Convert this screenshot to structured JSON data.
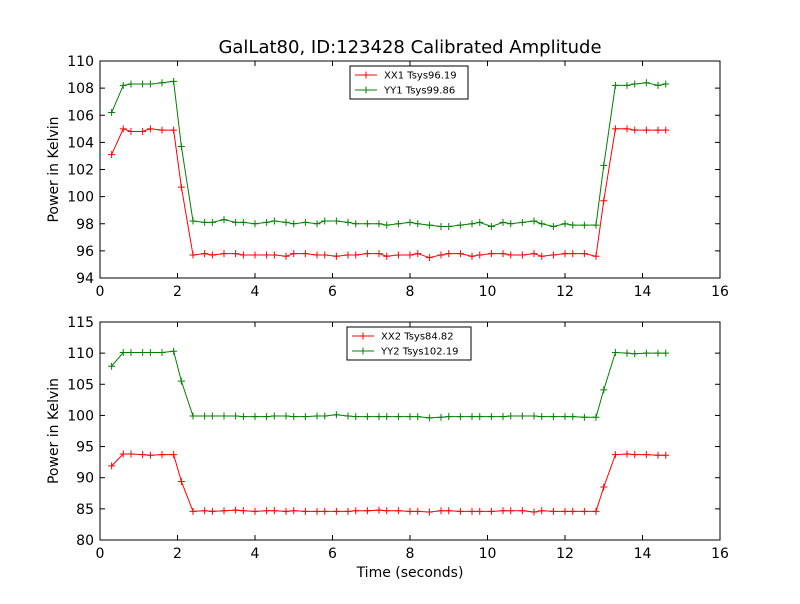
{
  "chart_data": [
    {
      "type": "line",
      "title": "GalLat80, ID:123428 Calibrated Amplitude",
      "xlabel": "",
      "ylabel": "Power in Kelvin",
      "xlim": [
        0,
        16
      ],
      "ylim": [
        94,
        110
      ],
      "xticks": [
        0,
        2,
        4,
        6,
        8,
        10,
        12,
        14,
        16
      ],
      "yticks": [
        94,
        96,
        98,
        100,
        102,
        104,
        106,
        108,
        110
      ],
      "grid": false,
      "legend_position": "top-center",
      "x": [
        0.3,
        0.6,
        0.8,
        1.1,
        1.3,
        1.6,
        1.9,
        2.1,
        2.4,
        2.7,
        2.9,
        3.2,
        3.5,
        3.7,
        4.0,
        4.3,
        4.5,
        4.8,
        5.0,
        5.3,
        5.6,
        5.8,
        6.1,
        6.4,
        6.6,
        6.9,
        7.2,
        7.4,
        7.7,
        8.0,
        8.2,
        8.5,
        8.8,
        9.0,
        9.3,
        9.6,
        9.8,
        10.1,
        10.4,
        10.6,
        10.9,
        11.2,
        11.4,
        11.7,
        12.0,
        12.2,
        12.5,
        12.8,
        13.0,
        13.3,
        13.6,
        13.8,
        14.1,
        14.4,
        14.6
      ],
      "series": [
        {
          "name": "XX1 Tsys96.19",
          "color": "#ff0000",
          "values": [
            103.1,
            105.0,
            104.8,
            104.8,
            105.0,
            104.9,
            104.9,
            100.7,
            95.7,
            95.8,
            95.7,
            95.8,
            95.8,
            95.7,
            95.7,
            95.7,
            95.7,
            95.6,
            95.8,
            95.8,
            95.7,
            95.7,
            95.6,
            95.7,
            95.7,
            95.8,
            95.8,
            95.6,
            95.7,
            95.7,
            95.8,
            95.5,
            95.7,
            95.8,
            95.8,
            95.6,
            95.7,
            95.8,
            95.8,
            95.7,
            95.7,
            95.8,
            95.6,
            95.7,
            95.8,
            95.8,
            95.8,
            95.6,
            99.7,
            105.0,
            105.0,
            104.9,
            104.9,
            104.9,
            104.9
          ]
        },
        {
          "name": "YY1 Tsys99.86",
          "color": "#008000",
          "values": [
            106.2,
            108.2,
            108.3,
            108.3,
            108.3,
            108.4,
            108.5,
            103.7,
            98.2,
            98.1,
            98.1,
            98.3,
            98.1,
            98.1,
            98.0,
            98.1,
            98.2,
            98.1,
            98.0,
            98.1,
            98.0,
            98.2,
            98.2,
            98.1,
            98.0,
            98.0,
            98.0,
            97.9,
            98.0,
            98.1,
            98.0,
            97.9,
            97.8,
            97.8,
            97.9,
            98.0,
            98.1,
            97.8,
            98.1,
            98.0,
            98.1,
            98.2,
            98.0,
            97.8,
            98.0,
            97.9,
            97.9,
            97.9,
            102.3,
            108.2,
            108.2,
            108.3,
            108.4,
            108.2,
            108.3
          ]
        }
      ]
    },
    {
      "type": "line",
      "title": "",
      "xlabel": "Time (seconds)",
      "ylabel": "Power in Kelvin",
      "xlim": [
        0,
        16
      ],
      "ylim": [
        80,
        115
      ],
      "xticks": [
        0,
        2,
        4,
        6,
        8,
        10,
        12,
        14,
        16
      ],
      "yticks": [
        80,
        85,
        90,
        95,
        100,
        105,
        110,
        115
      ],
      "grid": false,
      "legend_position": "top-center",
      "x": [
        0.3,
        0.6,
        0.8,
        1.1,
        1.3,
        1.6,
        1.9,
        2.1,
        2.4,
        2.7,
        2.9,
        3.2,
        3.5,
        3.7,
        4.0,
        4.3,
        4.5,
        4.8,
        5.0,
        5.3,
        5.6,
        5.8,
        6.1,
        6.4,
        6.6,
        6.9,
        7.2,
        7.4,
        7.7,
        8.0,
        8.2,
        8.5,
        8.8,
        9.0,
        9.3,
        9.6,
        9.8,
        10.1,
        10.4,
        10.6,
        10.9,
        11.2,
        11.4,
        11.7,
        12.0,
        12.2,
        12.5,
        12.8,
        13.0,
        13.3,
        13.6,
        13.8,
        14.1,
        14.4,
        14.6
      ],
      "series": [
        {
          "name": "XX2 Tsys84.82",
          "color": "#ff0000",
          "values": [
            91.9,
            93.8,
            93.8,
            93.7,
            93.6,
            93.7,
            93.7,
            89.4,
            84.6,
            84.7,
            84.6,
            84.7,
            84.8,
            84.7,
            84.6,
            84.7,
            84.7,
            84.6,
            84.7,
            84.6,
            84.6,
            84.6,
            84.6,
            84.6,
            84.7,
            84.7,
            84.8,
            84.7,
            84.7,
            84.6,
            84.6,
            84.5,
            84.7,
            84.7,
            84.6,
            84.6,
            84.6,
            84.6,
            84.7,
            84.7,
            84.7,
            84.5,
            84.7,
            84.6,
            84.6,
            84.6,
            84.6,
            84.6,
            88.5,
            93.7,
            93.8,
            93.7,
            93.7,
            93.6,
            93.6
          ]
        },
        {
          "name": "YY2 Tsys102.19",
          "color": "#008000",
          "values": [
            107.9,
            110.1,
            110.1,
            110.1,
            110.1,
            110.1,
            110.3,
            105.5,
            99.9,
            99.9,
            99.9,
            99.9,
            99.9,
            99.8,
            99.8,
            99.8,
            99.9,
            99.9,
            99.8,
            99.8,
            99.9,
            99.9,
            100.1,
            99.9,
            99.8,
            99.8,
            99.8,
            99.8,
            99.8,
            99.8,
            99.8,
            99.6,
            99.7,
            99.8,
            99.8,
            99.8,
            99.8,
            99.8,
            99.8,
            99.9,
            99.9,
            99.9,
            99.8,
            99.8,
            99.8,
            99.8,
            99.7,
            99.7,
            104.1,
            110.1,
            110.0,
            109.9,
            110.0,
            110.0,
            110.0
          ]
        }
      ]
    }
  ]
}
